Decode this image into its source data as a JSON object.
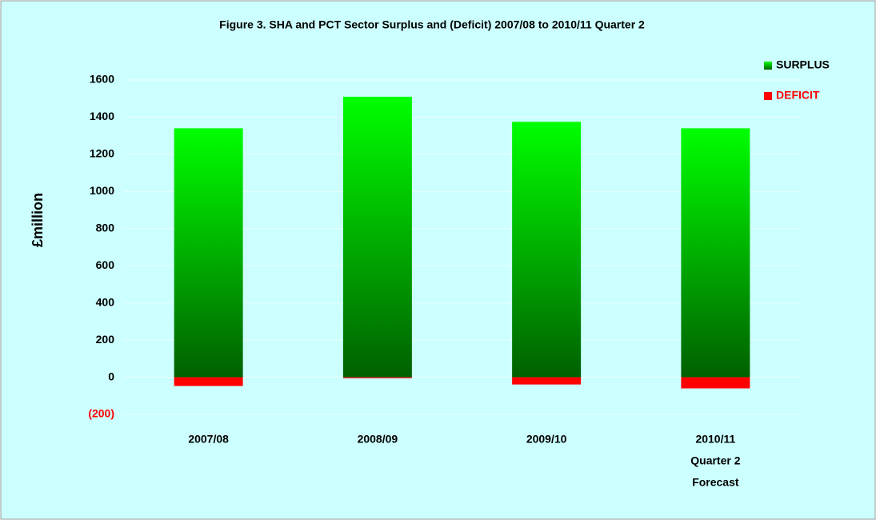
{
  "chart_data": {
    "type": "bar",
    "stacked": true,
    "title": "Figure 3. SHA and PCT Sector Surplus and (Deficit) 2007/08 to 2010/11 Quarter 2",
    "y_label": "£million",
    "categories": [
      [
        "2007/08"
      ],
      [
        "2008/09"
      ],
      [
        "2009/10"
      ],
      [
        "2010/11",
        "Quarter 2",
        "Forecast"
      ]
    ],
    "series": [
      {
        "name": "SURPLUS",
        "color": "#00ff00",
        "legend_text_color": "#000000",
        "values": [
          1340,
          1510,
          1375,
          1340
        ]
      },
      {
        "name": "DEFICIT",
        "color": "#ff0000",
        "legend_text_color": "#ff0000",
        "values": [
          -47,
          -5,
          -39,
          -60
        ]
      }
    ],
    "ylim": [
      -200,
      1600
    ],
    "yticks": [
      {
        "value": -200,
        "label": "(200)"
      },
      0,
      200,
      400,
      600,
      800,
      1000,
      1200,
      1400,
      1600
    ],
    "yticks_labels": null,
    "negative_tick_color": "#ff0000",
    "grid": true,
    "legend": "top-right"
  }
}
